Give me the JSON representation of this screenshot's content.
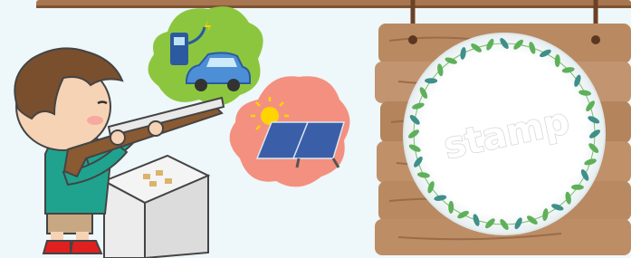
{
  "stamp": {
    "label": "stamp"
  }
}
